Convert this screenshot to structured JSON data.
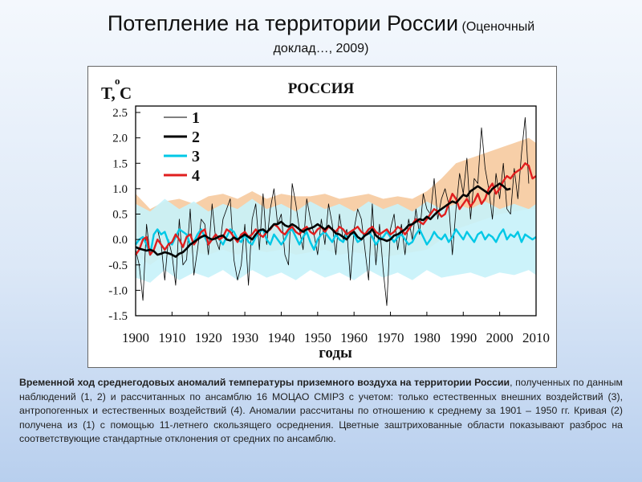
{
  "page": {
    "title": "Потепление на территории России",
    "title_note": "(Оценочный",
    "title_note_line2": "доклад…, 2009)"
  },
  "caption": {
    "bold": "Временной ход среднегодовых аномалий температуры приземного воздуха на территории России",
    "rest": ", полученных по данным наблюдений (1, 2) и рассчитанных по ансамблю 16 МОЦАО CMIP3 с учетом: только естественных внешних воздействий (3), антропогенных и естественных воздействий (4). Аномалии рассчитаны по отношению к среднему за 1901 – 1950 гг. Кривая (2) получена из (1) с помощью 11-летнего скользящего осреднения. Цветные заштрихованные области показывают разброс на соответствующие стандартные отклонения от средних по ансамблю."
  },
  "colors": {
    "series1": "#000000",
    "series2": "#000000",
    "series3": "#00c8e6",
    "series4": "#e01e1e",
    "band3": "#c6f2fa",
    "band4": "#f7cfa8"
  },
  "chart_data": {
    "type": "line",
    "title": "РОССИЯ",
    "xlabel": "годы",
    "ylabel": "T, C",
    "ylabel_superscript": "o",
    "xlim": [
      1900,
      2010
    ],
    "ylim": [
      -1.5,
      2.5
    ],
    "xticks": [
      "1900",
      "1910",
      "1920",
      "1930",
      "1940",
      "1950",
      "1960",
      "1970",
      "1980",
      "1990",
      "2000",
      "2010"
    ],
    "yticks": [
      "2.5",
      "2.0",
      "1.5",
      "1.0",
      "0.5",
      "0.0",
      "-0.5",
      "-1.0",
      "-1.5"
    ],
    "grid": false,
    "legend": {
      "placement": "top-left",
      "labels": [
        "1",
        "2",
        "3",
        "4"
      ]
    },
    "series": [
      {
        "name": "1",
        "x_start": 1900,
        "x_end": 2008,
        "step": 1,
        "values": [
          -0.2,
          -0.5,
          -1.2,
          0.3,
          -0.3,
          0.1,
          0.2,
          -0.1,
          -0.8,
          0.0,
          -0.3,
          -0.9,
          0.4,
          -0.5,
          -0.4,
          0.6,
          -0.7,
          -0.2,
          0.4,
          0.3,
          -0.3,
          0.7,
          0.0,
          -0.2,
          0.4,
          0.6,
          0.8,
          -0.4,
          -0.8,
          -0.5,
          0.3,
          -0.9,
          0.4,
          0.7,
          -0.2,
          0.9,
          -0.1,
          0.6,
          1.0,
          0.3,
          0.5,
          -0.3,
          -0.5,
          1.1,
          0.7,
          0.2,
          -0.2,
          0.8,
          0.4,
          0.1,
          -0.3,
          0.4,
          -0.1,
          0.7,
          0.3,
          -0.3,
          0.5,
          0.0,
          0.2,
          -0.8,
          0.2,
          0.6,
          0.4,
          -0.2,
          -0.8,
          0.7,
          -0.5,
          0.3,
          -0.6,
          -1.3,
          0.2,
          0.5,
          -0.2,
          0.3,
          -0.3,
          0.4,
          0.0,
          0.6,
          0.1,
          0.9,
          0.6,
          0.5,
          1.2,
          0.4,
          0.8,
          1.0,
          0.7,
          -0.3,
          0.6,
          1.3,
          0.9,
          1.6,
          0.4,
          1.2,
          1.1,
          2.2,
          1.4,
          1.0,
          0.4,
          1.3,
          0.8,
          1.5,
          0.6,
          0.5,
          1.4,
          0.8,
          1.7,
          2.4,
          1.1
        ]
      },
      {
        "name": "2",
        "x_start": 1900,
        "x_end": 2003,
        "step": 1,
        "values": [
          -0.15,
          -0.18,
          -0.2,
          -0.22,
          -0.2,
          -0.23,
          -0.3,
          -0.28,
          -0.25,
          -0.27,
          -0.3,
          -0.34,
          -0.28,
          -0.25,
          -0.18,
          -0.1,
          -0.05,
          0.0,
          0.05,
          0.08,
          0.03,
          0.0,
          0.02,
          0.06,
          0.08,
          0.0,
          -0.02,
          0.04,
          0.0,
          0.05,
          0.1,
          0.05,
          0.0,
          0.1,
          0.18,
          0.2,
          0.14,
          0.22,
          0.3,
          0.3,
          0.35,
          0.28,
          0.25,
          0.3,
          0.26,
          0.2,
          0.15,
          0.2,
          0.22,
          0.25,
          0.3,
          0.25,
          0.2,
          0.27,
          0.2,
          0.12,
          0.1,
          0.05,
          0.0,
          0.1,
          0.15,
          0.05,
          0.0,
          0.08,
          0.12,
          0.2,
          0.08,
          0.02,
          0.0,
          -0.03,
          0.0,
          0.08,
          0.1,
          0.15,
          0.2,
          0.28,
          0.3,
          0.35,
          0.4,
          0.38,
          0.45,
          0.4,
          0.48,
          0.55,
          0.6,
          0.65,
          0.7,
          0.75,
          0.72,
          0.8,
          0.88,
          0.85,
          0.95,
          1.0,
          1.05,
          1.0,
          0.95,
          0.9,
          1.0,
          1.05,
          1.1,
          1.05,
          0.98,
          1.0
        ]
      },
      {
        "name": "3",
        "x_start": 1900,
        "x_end": 2010,
        "step": 1,
        "values": [
          -0.1,
          0.0,
          0.05,
          -0.1,
          -0.3,
          0.1,
          0.2,
          0.1,
          0.15,
          -0.05,
          -0.1,
          0.05,
          0.2,
          0.15,
          0.1,
          -0.1,
          -0.05,
          0.1,
          0.2,
          0.05,
          -0.1,
          0.0,
          0.1,
          0.0,
          -0.1,
          0.05,
          0.2,
          0.15,
          0.0,
          -0.05,
          0.1,
          -0.05,
          -0.1,
          0.05,
          0.15,
          0.2,
          0.0,
          -0.1,
          0.1,
          0.0,
          -0.1,
          0.0,
          0.15,
          0.2,
          0.05,
          -0.1,
          0.05,
          0.15,
          -0.05,
          -0.2,
          0.0,
          0.1,
          0.15,
          0.05,
          -0.05,
          0.1,
          0.0,
          -0.05,
          0.1,
          0.15,
          0.1,
          -0.05,
          0.0,
          0.1,
          0.15,
          0.05,
          -0.1,
          0.0,
          0.05,
          0.15,
          0.05,
          -0.05,
          0.05,
          0.1,
          0.0,
          -0.1,
          -0.05,
          0.1,
          0.2,
          0.05,
          -0.1,
          0.0,
          0.15,
          0.05,
          0.0,
          0.1,
          -0.05,
          0.05,
          0.2,
          0.1,
          0.0,
          0.15,
          0.05,
          -0.05,
          0.1,
          0.15,
          0.0,
          0.1,
          0.05,
          -0.05,
          0.1,
          0.2,
          0.0,
          0.1,
          0.05,
          0.15,
          -0.05,
          0.1,
          0.05,
          0.0,
          0.05
        ]
      },
      {
        "name": "4",
        "x_start": 1900,
        "x_end": 2010,
        "step": 1,
        "values": [
          -0.3,
          -0.2,
          0.0,
          0.05,
          -0.3,
          -0.2,
          0.0,
          -0.1,
          -0.2,
          -0.1,
          -0.05,
          0.1,
          0.0,
          -0.15,
          0.05,
          0.1,
          -0.1,
          0.0,
          0.15,
          0.2,
          -0.1,
          0.0,
          0.1,
          0.0,
          0.05,
          0.2,
          0.15,
          0.05,
          -0.05,
          0.1,
          0.15,
          0.05,
          0.1,
          0.2,
          0.1,
          0.05,
          0.15,
          0.2,
          0.3,
          0.25,
          0.15,
          0.1,
          0.2,
          0.25,
          0.15,
          0.1,
          0.2,
          0.25,
          0.15,
          0.1,
          0.2,
          0.25,
          0.15,
          0.25,
          0.2,
          0.15,
          0.25,
          0.2,
          0.1,
          0.15,
          0.2,
          0.25,
          0.15,
          0.1,
          0.2,
          0.25,
          0.15,
          0.1,
          0.15,
          0.2,
          0.1,
          0.15,
          0.25,
          0.2,
          0.1,
          0.2,
          0.3,
          0.4,
          0.35,
          0.3,
          0.4,
          0.5,
          0.6,
          0.55,
          0.45,
          0.5,
          0.7,
          0.9,
          0.8,
          0.6,
          0.7,
          0.8,
          0.65,
          0.75,
          0.9,
          0.7,
          0.8,
          1.0,
          1.1,
          0.9,
          1.0,
          1.15,
          1.25,
          1.2,
          1.3,
          1.35,
          1.4,
          1.5,
          1.45,
          1.2,
          1.25
        ]
      }
    ],
    "bands": [
      {
        "series": "3",
        "x": [
          1900,
          1904,
          1908,
          1912,
          1916,
          1920,
          1924,
          1928,
          1932,
          1936,
          1940,
          1944,
          1948,
          1952,
          1956,
          1960,
          1964,
          1968,
          1972,
          1976,
          1980,
          1984,
          1988,
          1992,
          1996,
          2000,
          2004,
          2008,
          2010
        ],
        "upper": [
          0.7,
          0.55,
          0.8,
          0.6,
          0.75,
          0.55,
          0.7,
          0.6,
          0.8,
          0.6,
          0.7,
          0.55,
          0.75,
          0.6,
          0.7,
          0.55,
          0.75,
          0.6,
          0.7,
          0.55,
          0.75,
          0.6,
          0.7,
          0.6,
          0.75,
          0.6,
          0.7,
          0.6,
          0.7
        ],
        "lower": [
          -0.75,
          -0.85,
          -0.6,
          -0.8,
          -0.65,
          -0.75,
          -0.6,
          -0.8,
          -0.6,
          -0.75,
          -0.65,
          -0.8,
          -0.6,
          -0.75,
          -0.65,
          -0.8,
          -0.6,
          -0.75,
          -0.65,
          -0.8,
          -0.6,
          -0.75,
          -0.7,
          -0.65,
          -0.75,
          -0.65,
          -0.7,
          -0.6,
          -0.7
        ]
      },
      {
        "series": "4",
        "x": [
          1900,
          1904,
          1908,
          1912,
          1916,
          1920,
          1924,
          1928,
          1932,
          1936,
          1940,
          1944,
          1948,
          1952,
          1956,
          1960,
          1964,
          1968,
          1972,
          1976,
          1980,
          1984,
          1988,
          1992,
          1996,
          2000,
          2004,
          2008,
          2010
        ],
        "upper": [
          0.9,
          0.6,
          0.75,
          0.8,
          0.7,
          0.85,
          0.9,
          0.8,
          0.95,
          0.8,
          0.9,
          0.85,
          0.85,
          0.9,
          0.8,
          0.85,
          0.9,
          0.8,
          0.85,
          0.8,
          0.95,
          1.2,
          1.5,
          1.6,
          1.7,
          1.8,
          1.9,
          2.0,
          1.9
        ],
        "lower": [
          -0.3,
          -0.5,
          -0.3,
          -0.4,
          -0.25,
          -0.3,
          -0.2,
          -0.3,
          -0.2,
          -0.25,
          -0.2,
          -0.3,
          -0.25,
          -0.2,
          -0.3,
          -0.25,
          -0.3,
          -0.35,
          -0.3,
          -0.25,
          -0.2,
          0.0,
          0.2,
          0.3,
          0.4,
          0.5,
          0.55,
          0.6,
          0.6
        ]
      }
    ]
  }
}
